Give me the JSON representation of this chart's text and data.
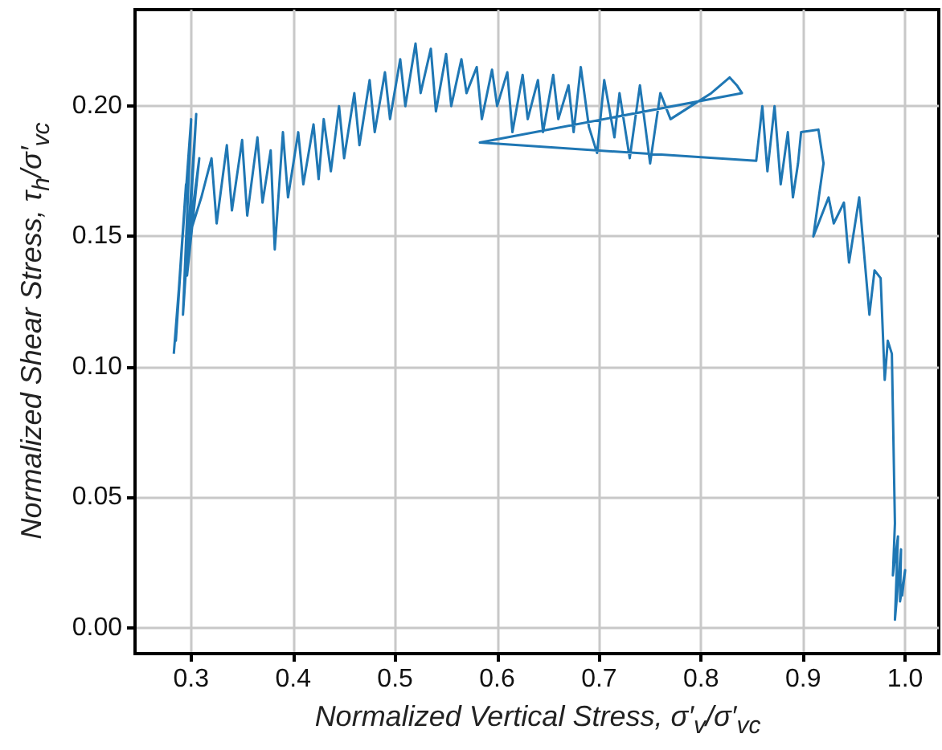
{
  "chart_data": {
    "type": "line",
    "xlabel": "Normalized Vertical Stress, σ′$_{v}$/σ′$_{vc}$",
    "ylabel": "Normalized Shear Stress, τ$_{h}$/σ′$_{vc}$",
    "xlim": [
      0.245,
      1.033
    ],
    "xticks": [
      {
        "value": 0.3,
        "label": "0.3"
      },
      {
        "value": 0.4,
        "label": "0.4"
      },
      {
        "value": 0.5,
        "label": "0.5"
      },
      {
        "value": 0.6,
        "label": "0.6"
      },
      {
        "value": 0.7,
        "label": "0.7"
      },
      {
        "value": 0.8,
        "label": "0.8"
      },
      {
        "value": 0.9,
        "label": "0.9"
      },
      {
        "value": 1.0,
        "label": "1.0"
      }
    ],
    "ylim": [
      -0.01,
      0.237
    ],
    "yticks": [
      {
        "value": 0,
        "label": "0.00"
      },
      {
        "value": 0.05,
        "label": "0.05"
      },
      {
        "value": 0.1,
        "label": "0.10"
      },
      {
        "value": 0.15,
        "label": "0.15"
      },
      {
        "value": 0.2,
        "label": "0.20"
      }
    ],
    "grid": true,
    "marker": "none",
    "line_style": "solid",
    "series": [
      {
        "color": "#1f77b4",
        "x": [
          0.283,
          0.29,
          0.285,
          0.295,
          0.288,
          0.3,
          0.292,
          0.305,
          0.296,
          0.308,
          0.298,
          0.31,
          0.32,
          0.325,
          0.335,
          0.34,
          0.35,
          0.355,
          0.365,
          0.37,
          0.378,
          0.382,
          0.39,
          0.395,
          0.405,
          0.41,
          0.42,
          0.425,
          0.43,
          0.437,
          0.445,
          0.45,
          0.46,
          0.465,
          0.475,
          0.48,
          0.49,
          0.495,
          0.505,
          0.51,
          0.52,
          0.525,
          0.535,
          0.54,
          0.55,
          0.555,
          0.565,
          0.57,
          0.58,
          0.585,
          0.595,
          0.6,
          0.61,
          0.615,
          0.625,
          0.63,
          0.64,
          0.645,
          0.655,
          0.66,
          0.67,
          0.675,
          0.682,
          0.69,
          0.698,
          0.705,
          0.715,
          0.72,
          0.73,
          0.74,
          0.75,
          0.76,
          0.77,
          0.79,
          0.81,
          0.828,
          0.835,
          0.84,
          0.583,
          0.854,
          0.86,
          0.865,
          0.872,
          0.878,
          0.885,
          0.89,
          0.895,
          0.898,
          0.915,
          0.92,
          0.91,
          0.925,
          0.93,
          0.94,
          0.945,
          0.955,
          0.965,
          0.97,
          0.976,
          0.98,
          0.983,
          0.987,
          0.99,
          0.988,
          0.993,
          0.99,
          0.996,
          0.995,
          1.0,
          0.997
        ],
        "values": [
          0.105,
          0.14,
          0.11,
          0.17,
          0.13,
          0.195,
          0.12,
          0.197,
          0.135,
          0.18,
          0.15,
          0.165,
          0.18,
          0.155,
          0.185,
          0.16,
          0.187,
          0.158,
          0.188,
          0.163,
          0.183,
          0.145,
          0.19,
          0.165,
          0.19,
          0.17,
          0.193,
          0.172,
          0.195,
          0.175,
          0.2,
          0.18,
          0.205,
          0.185,
          0.21,
          0.19,
          0.213,
          0.195,
          0.218,
          0.2,
          0.224,
          0.205,
          0.222,
          0.198,
          0.22,
          0.2,
          0.218,
          0.205,
          0.215,
          0.195,
          0.214,
          0.2,
          0.213,
          0.19,
          0.212,
          0.195,
          0.21,
          0.19,
          0.212,
          0.195,
          0.208,
          0.19,
          0.215,
          0.192,
          0.182,
          0.21,
          0.188,
          0.205,
          0.18,
          0.208,
          0.178,
          0.205,
          0.195,
          0.2,
          0.205,
          0.211,
          0.208,
          0.205,
          0.186,
          0.179,
          0.2,
          0.175,
          0.2,
          0.17,
          0.19,
          0.165,
          0.178,
          0.19,
          0.191,
          0.178,
          0.15,
          0.165,
          0.155,
          0.163,
          0.14,
          0.165,
          0.12,
          0.137,
          0.134,
          0.095,
          0.11,
          0.105,
          0.04,
          0.02,
          0.035,
          0.003,
          0.03,
          0.01,
          0.022,
          0.012
        ]
      }
    ]
  }
}
